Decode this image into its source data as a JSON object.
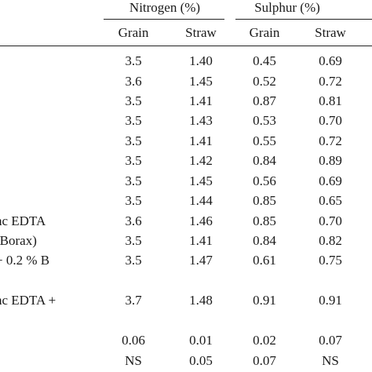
{
  "header": {
    "groups": [
      "Nitrogen (%)",
      "Sulphur (%)"
    ],
    "subcols": [
      "Grain",
      "Straw",
      "Grain",
      "Straw"
    ]
  },
  "rows": [
    {
      "label": "",
      "values": [
        "3.5",
        "1.40",
        "0.45",
        "0.69"
      ]
    },
    {
      "label": "",
      "values": [
        "3.6",
        "1.45",
        "0.52",
        "0.72"
      ]
    },
    {
      "label": "",
      "values": [
        "3.5",
        "1.41",
        "0.87",
        "0.81"
      ]
    },
    {
      "label": "",
      "values": [
        "3.5",
        "1.43",
        "0.53",
        "0.70"
      ]
    },
    {
      "label": "",
      "values": [
        "3.5",
        "1.41",
        "0.55",
        "0.72"
      ]
    },
    {
      "label": "",
      "values": [
        "3.5",
        "1.42",
        "0.84",
        "0.89"
      ]
    },
    {
      "label": "",
      "values": [
        "3.5",
        "1.45",
        "0.56",
        "0.69"
      ]
    },
    {
      "label": "",
      "values": [
        "3.5",
        "1.44",
        "0.85",
        "0.65"
      ]
    },
    {
      "label": "nc EDTA",
      "values": [
        "3.6",
        "1.46",
        "0.85",
        "0.70"
      ]
    },
    {
      "label": "(Borax)",
      "values": [
        "3.5",
        "1.41",
        "0.84",
        "0.82"
      ]
    },
    {
      "label": "+ 0.2 %  B",
      "values": [
        "3.5",
        "1.47",
        "0.61",
        "0.75"
      ]
    },
    {
      "label": "nc EDTA +",
      "values": [
        "3.7",
        "1.48",
        "0.91",
        "0.91"
      ]
    },
    {
      "label": "",
      "values": [
        "0.06",
        "0.01",
        "0.02",
        "0.07"
      ]
    },
    {
      "label": "",
      "values": [
        "NS",
        "0.05",
        "0.07",
        "NS"
      ]
    }
  ]
}
